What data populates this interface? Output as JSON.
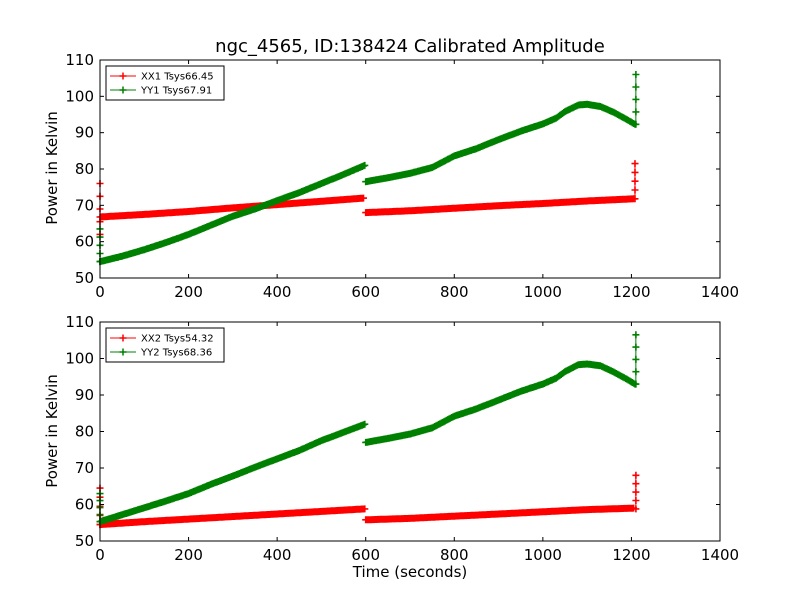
{
  "chart_data": [
    {
      "type": "line",
      "title": "ngc_4565, ID:138424 Calibrated Amplitude",
      "xlabel": "",
      "ylabel": "Power in Kelvin",
      "xlim": [
        0,
        1400
      ],
      "ylim": [
        50,
        110
      ],
      "xticks": [
        0,
        200,
        400,
        600,
        800,
        1000,
        1200,
        1400
      ],
      "yticks": [
        50,
        60,
        70,
        80,
        90,
        100,
        110
      ],
      "legend_position": "upper-left",
      "series": [
        {
          "name": "XX1 Tsys66.45",
          "color": "#ff0000",
          "marker": "plus",
          "segments": [
            {
              "x": [
                0,
                100,
                200,
                300,
                400,
                500,
                595
              ],
              "y": [
                66.8,
                67.5,
                68.3,
                69.3,
                70.2,
                71.1,
                72.0
              ]
            },
            {
              "x": [
                600,
                700,
                800,
                900,
                1000,
                1100,
                1205
              ],
              "y": [
                68.0,
                68.5,
                69.2,
                69.9,
                70.5,
                71.2,
                71.8
              ]
            }
          ],
          "spikes": [
            {
              "x": 0,
              "y": [
                62,
                76
              ]
            },
            {
              "x": 1208,
              "y": [
                71.8,
                81.5
              ]
            }
          ]
        },
        {
          "name": "YY1 Tsys67.91",
          "color": "#008000",
          "marker": "plus",
          "segments": [
            {
              "x": [
                0,
                50,
                100,
                150,
                200,
                250,
                300,
                350,
                400,
                450,
                500,
                550,
                598
              ],
              "y": [
                54.5,
                56.0,
                57.8,
                59.8,
                62.0,
                64.5,
                67.0,
                69.0,
                71.3,
                73.5,
                76.0,
                78.5,
                81.0
              ]
            },
            {
              "x": [
                600,
                650,
                700,
                750,
                800,
                850,
                900,
                950,
                1000,
                1030,
                1050,
                1080,
                1100,
                1130,
                1160,
                1190,
                1208
              ],
              "y": [
                76.5,
                77.6,
                78.8,
                80.4,
                83.6,
                85.6,
                88.1,
                90.4,
                92.4,
                94.0,
                95.8,
                97.6,
                97.8,
                97.2,
                95.6,
                93.6,
                92.3
              ]
            }
          ],
          "spikes": [
            {
              "x": 0,
              "y": [
                54.5,
                63.5
              ]
            },
            {
              "x": 1210,
              "y": [
                92.3,
                106
              ]
            }
          ]
        }
      ]
    },
    {
      "type": "line",
      "title": "",
      "xlabel": "Time (seconds)",
      "ylabel": "Power in Kelvin",
      "xlim": [
        0,
        1400
      ],
      "ylim": [
        50,
        110
      ],
      "xticks": [
        0,
        200,
        400,
        600,
        800,
        1000,
        1200,
        1400
      ],
      "yticks": [
        50,
        60,
        70,
        80,
        90,
        100,
        110
      ],
      "legend_position": "upper-left",
      "series": [
        {
          "name": "XX2 Tsys54.32",
          "color": "#ff0000",
          "marker": "plus",
          "segments": [
            {
              "x": [
                0,
                100,
                200,
                300,
                400,
                500,
                598
              ],
              "y": [
                54.5,
                55.3,
                56.0,
                56.7,
                57.4,
                58.1,
                58.8
              ]
            },
            {
              "x": [
                600,
                700,
                800,
                900,
                1000,
                1100,
                1205
              ],
              "y": [
                55.8,
                56.2,
                56.8,
                57.4,
                58.0,
                58.6,
                59.0
              ]
            }
          ],
          "spikes": [
            {
              "x": 0,
              "y": [
                54.5,
                64.5
              ]
            },
            {
              "x": 1210,
              "y": [
                58.8,
                68.0
              ]
            }
          ]
        },
        {
          "name": "YY2 Tsys68.36",
          "color": "#008000",
          "marker": "plus",
          "segments": [
            {
              "x": [
                0,
                50,
                100,
                150,
                200,
                250,
                300,
                350,
                400,
                450,
                500,
                550,
                598
              ],
              "y": [
                55.3,
                57.2,
                59.1,
                61.0,
                63.0,
                65.5,
                67.8,
                70.2,
                72.5,
                74.8,
                77.5,
                79.8,
                82.0
              ]
            },
            {
              "x": [
                600,
                650,
                700,
                750,
                800,
                850,
                900,
                950,
                1000,
                1030,
                1050,
                1080,
                1100,
                1130,
                1160,
                1190,
                1208
              ],
              "y": [
                77.0,
                78.1,
                79.3,
                81.0,
                84.2,
                86.2,
                88.6,
                91.0,
                93.0,
                94.6,
                96.4,
                98.3,
                98.5,
                98.0,
                96.3,
                94.3,
                93.0
              ]
            }
          ],
          "spikes": [
            {
              "x": 0,
              "y": [
                55.3,
                63.0
              ]
            },
            {
              "x": 1210,
              "y": [
                93.0,
                106.5
              ]
            }
          ]
        }
      ]
    }
  ]
}
